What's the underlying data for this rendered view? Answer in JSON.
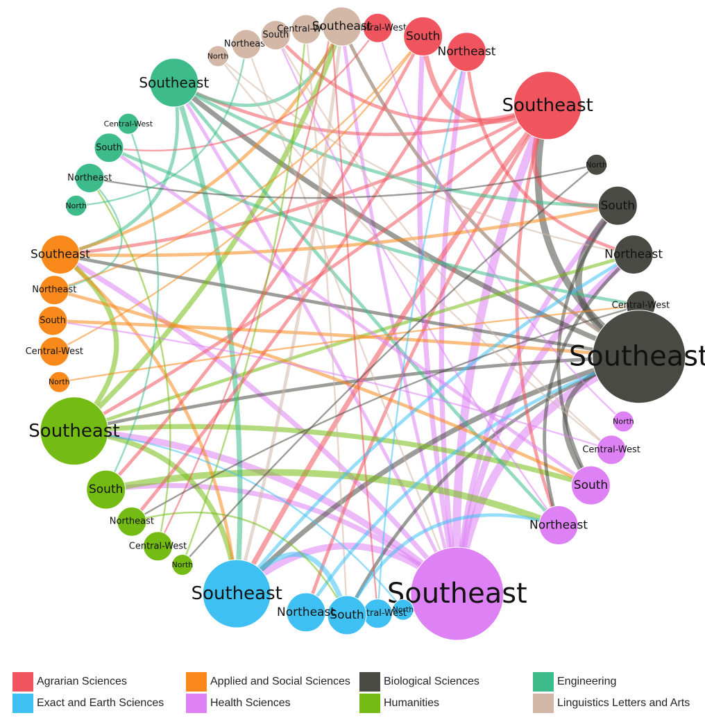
{
  "categories": [
    {
      "name": "Agrarian Sciences",
      "color": "#F0545F"
    },
    {
      "name": "Exact and Earth Sciences",
      "color": "#3EC1F2"
    },
    {
      "name": "Applied and Social Sciences",
      "color": "#F8891A"
    },
    {
      "name": "Health Sciences",
      "color": "#DD81F4"
    },
    {
      "name": "Biological Sciences",
      "color": "#4A4A44"
    },
    {
      "name": "Humanities",
      "color": "#74BB13"
    },
    {
      "name": "Engineering",
      "color": "#3DBB8B"
    },
    {
      "name": "Linguistics Letters and Arts",
      "color": "#D3B8A8"
    }
  ],
  "nodes": [
    {
      "id": "agr-n",
      "cat": 0,
      "label": "North",
      "size": 1
    },
    {
      "id": "agr-cw",
      "cat": 0,
      "label": "Central-West",
      "size": 2
    },
    {
      "id": "agr-s",
      "cat": 0,
      "label": "South",
      "size": 3
    },
    {
      "id": "agr-ne",
      "cat": 0,
      "label": "Northeast",
      "size": 3
    },
    {
      "id": "agr-se",
      "cat": 0,
      "label": "Southeast",
      "size": 5
    },
    {
      "id": "bio-n",
      "cat": 4,
      "label": "North",
      "size": 1
    },
    {
      "id": "bio-s",
      "cat": 4,
      "label": "South",
      "size": 3
    },
    {
      "id": "bio-ne",
      "cat": 4,
      "label": "Northeast",
      "size": 3
    },
    {
      "id": "bio-cw",
      "cat": 4,
      "label": "Central-West",
      "size": 2
    },
    {
      "id": "bio-se",
      "cat": 4,
      "label": "Southeast",
      "size": 7
    },
    {
      "id": "hea-n",
      "cat": 3,
      "label": "North",
      "size": 1
    },
    {
      "id": "hea-cw",
      "cat": 3,
      "label": "Central-West",
      "size": 2
    },
    {
      "id": "hea-s",
      "cat": 3,
      "label": "South",
      "size": 3
    },
    {
      "id": "hea-ne",
      "cat": 3,
      "label": "Northeast",
      "size": 3
    },
    {
      "id": "hea-se",
      "cat": 3,
      "label": "Southeast",
      "size": 7
    },
    {
      "id": "exa-n",
      "cat": 1,
      "label": "North",
      "size": 1
    },
    {
      "id": "exa-cw",
      "cat": 1,
      "label": "Central-West",
      "size": 2
    },
    {
      "id": "exa-s",
      "cat": 1,
      "label": "South",
      "size": 3
    },
    {
      "id": "exa-ne",
      "cat": 1,
      "label": "Northeast",
      "size": 3
    },
    {
      "id": "exa-se",
      "cat": 1,
      "label": "Southeast",
      "size": 5
    },
    {
      "id": "hum-n",
      "cat": 5,
      "label": "North",
      "size": 1
    },
    {
      "id": "hum-cw",
      "cat": 5,
      "label": "Central-West",
      "size": 2
    },
    {
      "id": "hum-ne",
      "cat": 5,
      "label": "Northeast",
      "size": 2
    },
    {
      "id": "hum-s",
      "cat": 5,
      "label": "South",
      "size": 3
    },
    {
      "id": "hum-se",
      "cat": 5,
      "label": "Southeast",
      "size": 5
    },
    {
      "id": "app-n",
      "cat": 2,
      "label": "North",
      "size": 1
    },
    {
      "id": "app-cw",
      "cat": 2,
      "label": "Central-West",
      "size": 2
    },
    {
      "id": "app-s",
      "cat": 2,
      "label": "South",
      "size": 2
    },
    {
      "id": "app-ne",
      "cat": 2,
      "label": "Northeast",
      "size": 2
    },
    {
      "id": "app-se",
      "cat": 2,
      "label": "Southeast",
      "size": 3
    },
    {
      "id": "eng-n",
      "cat": 6,
      "label": "North",
      "size": 1
    },
    {
      "id": "eng-ne",
      "cat": 6,
      "label": "Northeast",
      "size": 2
    },
    {
      "id": "eng-s",
      "cat": 6,
      "label": "South",
      "size": 2
    },
    {
      "id": "eng-cw",
      "cat": 6,
      "label": "Central-West",
      "size": 1
    },
    {
      "id": "eng-se",
      "cat": 6,
      "label": "Southeast",
      "size": 4
    },
    {
      "id": "lin-n",
      "cat": 7,
      "label": "North",
      "size": 1
    },
    {
      "id": "lin-ne",
      "cat": 7,
      "label": "Northeast",
      "size": 2
    },
    {
      "id": "lin-s",
      "cat": 7,
      "label": "South",
      "size": 2
    },
    {
      "id": "lin-cw",
      "cat": 7,
      "label": "Central-West",
      "size": 2
    },
    {
      "id": "lin-se",
      "cat": 7,
      "label": "Southeast",
      "size": 3
    }
  ],
  "edges": [
    [
      "hea-se",
      "agr-se",
      5
    ],
    [
      "hea-se",
      "bio-se",
      5
    ],
    [
      "hea-se",
      "bio-ne",
      4
    ],
    [
      "hea-se",
      "agr-ne",
      3
    ],
    [
      "hea-se",
      "agr-s",
      3
    ],
    [
      "hea-se",
      "hum-se",
      4
    ],
    [
      "hea-se",
      "lin-se",
      2
    ],
    [
      "hea-se",
      "eng-se",
      2
    ],
    [
      "hea-se",
      "app-se",
      3
    ],
    [
      "hea-se",
      "exa-se",
      4
    ],
    [
      "hea-se",
      "hum-s",
      3
    ],
    [
      "hea-se",
      "bio-s",
      3
    ],
    [
      "bio-se",
      "agr-se",
      4
    ],
    [
      "bio-se",
      "exa-se",
      3
    ],
    [
      "bio-se",
      "eng-se",
      3
    ],
    [
      "bio-se",
      "hum-se",
      2
    ],
    [
      "bio-se",
      "app-se",
      2
    ],
    [
      "bio-se",
      "bio-s",
      4
    ],
    [
      "bio-se",
      "hea-s",
      3
    ],
    [
      "bio-se",
      "exa-s",
      2
    ],
    [
      "bio-se",
      "lin-se",
      2
    ],
    [
      "agr-se",
      "agr-s",
      3
    ],
    [
      "agr-se",
      "app-se",
      2
    ],
    [
      "agr-se",
      "eng-se",
      2
    ],
    [
      "agr-se",
      "exa-se",
      3
    ],
    [
      "agr-se",
      "hum-se",
      2
    ],
    [
      "agr-se",
      "lin-s",
      2
    ],
    [
      "agr-se",
      "bio-s",
      3
    ],
    [
      "agr-se",
      "hea-ne",
      2
    ],
    [
      "agr-se",
      "exa-ne",
      2
    ],
    [
      "hum-se",
      "exa-se",
      3
    ],
    [
      "hum-se",
      "app-se",
      3
    ],
    [
      "hum-se",
      "lin-se",
      3
    ],
    [
      "hum-se",
      "hea-s",
      3
    ],
    [
      "hum-se",
      "bio-ne",
      2
    ],
    [
      "hum-s",
      "hea-ne",
      4
    ],
    [
      "eng-se",
      "exa-se",
      3
    ],
    [
      "eng-se",
      "app-se",
      2
    ],
    [
      "eng-se",
      "bio-s",
      2
    ],
    [
      "eng-se",
      "hea-ne",
      2
    ],
    [
      "eng-se",
      "lin-se",
      2
    ],
    [
      "eng-s",
      "bio-cw",
      2
    ],
    [
      "app-se",
      "exa-se",
      2
    ],
    [
      "app-se",
      "lin-se",
      2
    ],
    [
      "app-se",
      "bio-s",
      2
    ],
    [
      "app-ne",
      "hea-s",
      2
    ],
    [
      "app-s",
      "bio-se",
      2
    ],
    [
      "app-cw",
      "agr-s",
      1
    ],
    [
      "lin-se",
      "exa-se",
      2
    ],
    [
      "lin-se",
      "bio-se",
      2
    ],
    [
      "lin-s",
      "hea-cw",
      1
    ],
    [
      "lin-ne",
      "hea-se",
      1
    ],
    [
      "lin-cw",
      "exa-s",
      1
    ],
    [
      "lin-n",
      "bio-ne",
      1
    ],
    [
      "exa-se",
      "exa-s",
      3
    ],
    [
      "exa-se",
      "bio-ne",
      2
    ],
    [
      "exa-s",
      "hea-ne",
      2
    ],
    [
      "exa-ne",
      "bio-se",
      2
    ],
    [
      "exa-cw",
      "agr-ne",
      1
    ],
    [
      "exa-n",
      "hum-se",
      1
    ],
    [
      "agr-s",
      "hum-s",
      2
    ],
    [
      "agr-ne",
      "hum-ne",
      2
    ],
    [
      "agr-ne",
      "bio-ne",
      2
    ],
    [
      "agr-cw",
      "eng-s",
      1
    ],
    [
      "agr-n",
      "hum-cw",
      1
    ],
    [
      "bio-ne",
      "hea-ne",
      2
    ],
    [
      "bio-s",
      "hea-s",
      2
    ],
    [
      "bio-cw",
      "hum-ne",
      1
    ],
    [
      "bio-n",
      "eng-ne",
      1
    ],
    [
      "hea-s",
      "eng-s",
      2
    ],
    [
      "hea-ne",
      "lin-s",
      1
    ],
    [
      "hea-cw",
      "app-s",
      1
    ],
    [
      "hea-n",
      "agr-cw",
      1
    ],
    [
      "hum-ne",
      "exa-s",
      1
    ],
    [
      "hum-cw",
      "eng-ne",
      1
    ],
    [
      "hum-n",
      "lin-cw",
      1
    ],
    [
      "eng-ne",
      "app-ne",
      1
    ],
    [
      "eng-n",
      "lin-ne",
      1
    ],
    [
      "app-n",
      "bio-cw",
      1
    ],
    [
      "app-ne",
      "agr-s",
      1
    ],
    [
      "eng-cw",
      "hum-s",
      1
    ],
    [
      "lin-n",
      "hea-cw",
      1
    ],
    [
      "agr-n",
      "exa-cw",
      1
    ],
    [
      "bio-n",
      "hum-n",
      1
    ]
  ]
}
